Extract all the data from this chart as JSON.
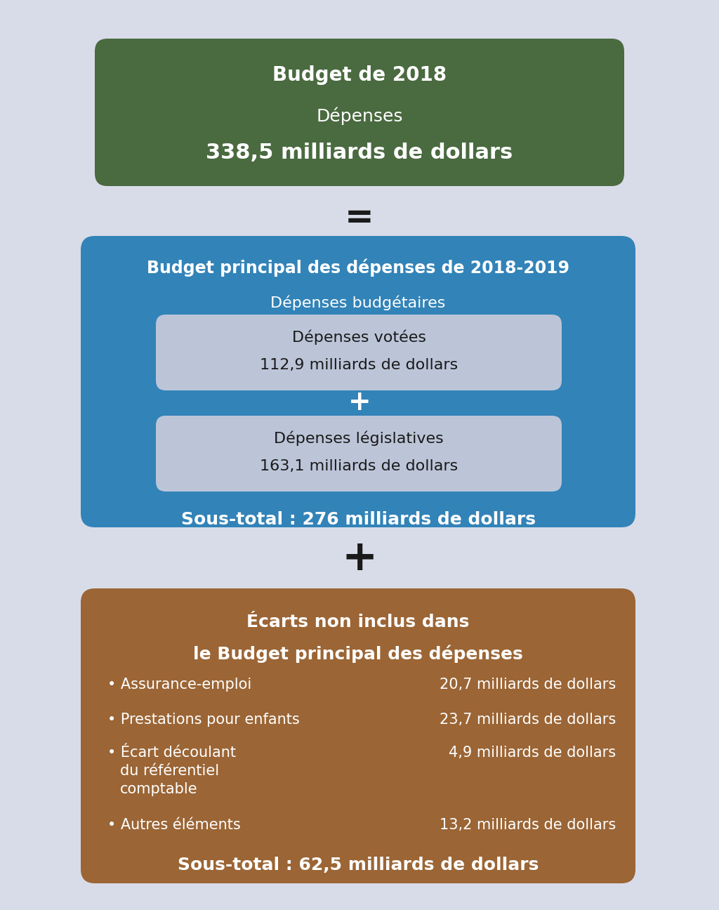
{
  "background_color": "#d8dce8",
  "box1": {
    "color": "#4a6a40",
    "title": "Budget de 2018",
    "line2": "Dépenses",
    "line3": "338,5 milliards de dollars",
    "text_color": "#ffffff"
  },
  "separator1": "=",
  "box2": {
    "color": "#3283b8",
    "title": "Budget principal des dépenses de 2018-2019",
    "subtitle": "Dépenses budgétaires",
    "text_color": "#ffffff",
    "inner_box_color": "#bcc5d8",
    "inner_box1_line1": "Dépenses votées",
    "inner_box1_line2": "112,9 milliards de dollars",
    "inner_plus": "+",
    "inner_box2_line1": "Dépenses législatives",
    "inner_box2_line2": "163,1 milliards de dollars",
    "subtotal": "Sous-total : 276 milliards de dollars"
  },
  "separator2": "+",
  "box3": {
    "color": "#9b6535",
    "title_line1": "Écarts non inclus dans",
    "title_line2": "le Budget principal des dépenses",
    "text_color": "#ffffff",
    "items": [
      {
        "label": "Assurance-emploi",
        "value": "20,7 milliards de dollars"
      },
      {
        "label": "Prestations pour enfants",
        "value": "23,7 milliards de dollars"
      },
      {
        "label_lines": [
          "Écart découlant",
          "du référentiel",
          "comptable"
        ],
        "value": "4,9 milliards de dollars"
      },
      {
        "label": "Autres éléments",
        "value": "13,2 milliards de dollars"
      }
    ],
    "subtotal": "Sous-total : 62,5 milliards de dollars",
    "bullet": "•"
  }
}
